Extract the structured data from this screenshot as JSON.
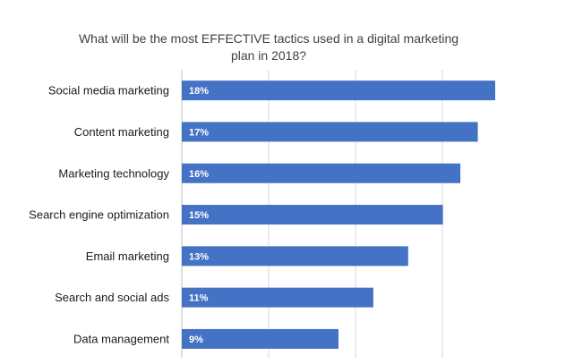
{
  "chart_data": {
    "type": "bar",
    "orientation": "horizontal",
    "title_lines": [
      "What will be the most EFFECTIVE  tactics used in a digital marketing",
      "plan in 2018?"
    ],
    "categories": [
      "Social media marketing",
      "Content marketing",
      "Marketing technology",
      "Search engine optimization",
      "Email marketing",
      "Search and social ads",
      "Data management"
    ],
    "values": [
      18,
      17,
      16,
      15,
      13,
      11,
      9
    ],
    "value_labels": [
      "18%",
      "17%",
      "16%",
      "15%",
      "13%",
      "11%",
      "9%"
    ],
    "xlim": [
      0,
      18
    ],
    "grid": true,
    "bar_color": "#4472C4",
    "legend": "none"
  }
}
